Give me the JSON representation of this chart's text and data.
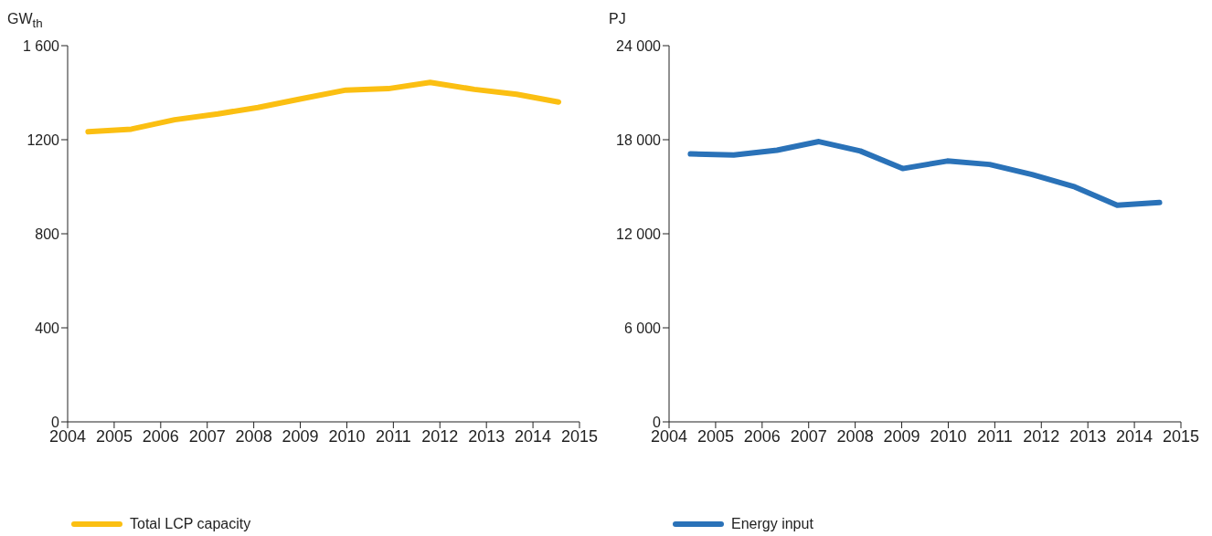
{
  "chart_data": [
    {
      "type": "line",
      "ylabel": "GW$_{th}$",
      "x": [
        2004.44,
        2005.37,
        2006.3,
        2007.23,
        2008.09,
        2008.99,
        2009.98,
        2010.89,
        2011.79,
        2012.74,
        2013.65,
        2014.55
      ],
      "series": [
        {
          "name": "Total LCP capacity",
          "color": "#fbbf12",
          "values": [
            1234,
            1245,
            1285,
            1310,
            1337,
            1373,
            1411,
            1417,
            1444,
            1414,
            1393,
            1360
          ]
        }
      ],
      "xlim": [
        2004,
        2015
      ],
      "xticks": [
        2004,
        2005,
        2006,
        2007,
        2008,
        2009,
        2010,
        2011,
        2012,
        2013,
        2014,
        2015
      ],
      "ylim": [
        0,
        1600
      ],
      "yticks": [
        0,
        400,
        800,
        1200,
        {
          "value": 1600,
          "label": "1 600"
        }
      ],
      "legend": "bottom"
    },
    {
      "type": "line",
      "ylabel": "PJ",
      "x": [
        2004.46,
        2005.39,
        2006.32,
        2007.22,
        2008.11,
        2009.02,
        2009.98,
        2010.89,
        2011.8,
        2012.72,
        2013.63,
        2014.54
      ],
      "series": [
        {
          "name": "Energy input",
          "color": "#2a72b8",
          "values": [
            17090,
            17020,
            17330,
            17880,
            17280,
            16160,
            16640,
            16420,
            15780,
            14990,
            13820,
            13990
          ]
        }
      ],
      "xlim": [
        2004,
        2015
      ],
      "xticks": [
        2004,
        2005,
        2006,
        2007,
        2008,
        2009,
        2010,
        2011,
        2012,
        2013,
        2014,
        2015
      ],
      "ylim": [
        0,
        24000
      ],
      "yticks": [
        0,
        {
          "value": 6000,
          "label": "6 000"
        },
        {
          "value": 12000,
          "label": "12 000"
        },
        {
          "value": 18000,
          "label": "18 000"
        },
        {
          "value": 24000,
          "label": "24 000"
        }
      ],
      "legend": "bottom"
    }
  ]
}
